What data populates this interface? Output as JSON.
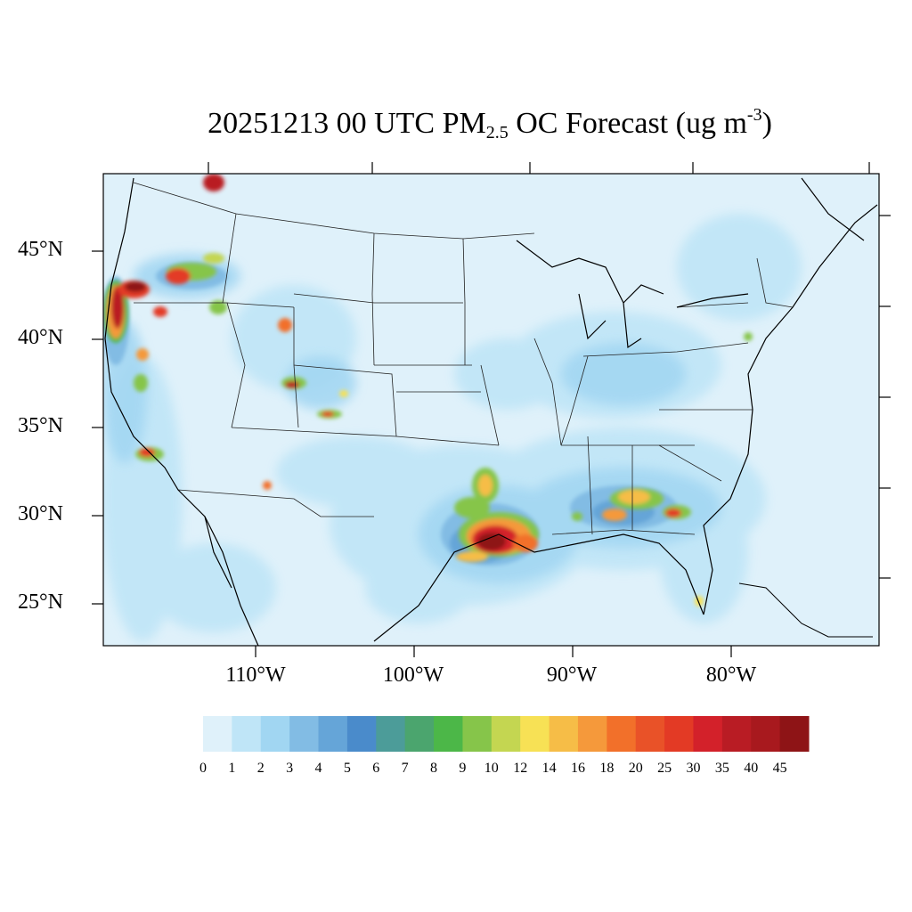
{
  "title": {
    "prefix": "20251213 00 UTC PM",
    "subscript": "2.5",
    "middle": " OC Forecast (ug m",
    "superscript": "-3",
    "suffix": ")"
  },
  "map": {
    "projection": "Lambert conformal (CONUS)",
    "background_color": "#dff1fa",
    "lat_labels": [
      "45°N",
      "40°N",
      "35°N",
      "30°N",
      "25°N"
    ],
    "lon_labels": [
      "110°W",
      "100°W",
      "90°W",
      "80°W"
    ]
  },
  "colorbar": {
    "labels": [
      "0",
      "1",
      "2",
      "3",
      "4",
      "5",
      "6",
      "7",
      "8",
      "9",
      "10",
      "12",
      "14",
      "16",
      "18",
      "20",
      "25",
      "30",
      "35",
      "40",
      "45"
    ],
    "colors": [
      "#dff1fa",
      "#bfe5f7",
      "#a1d6f2",
      "#82bce4",
      "#65a5d8",
      "#4a8bcb",
      "#4c9c99",
      "#4ba56e",
      "#4cb748",
      "#86c54a",
      "#c4d651",
      "#f7e155",
      "#f6bd47",
      "#f5993b",
      "#f2702a",
      "#e95228",
      "#e33a25",
      "#d3212a",
      "#b91c24",
      "#a8191e",
      "#8e1416"
    ]
  }
}
